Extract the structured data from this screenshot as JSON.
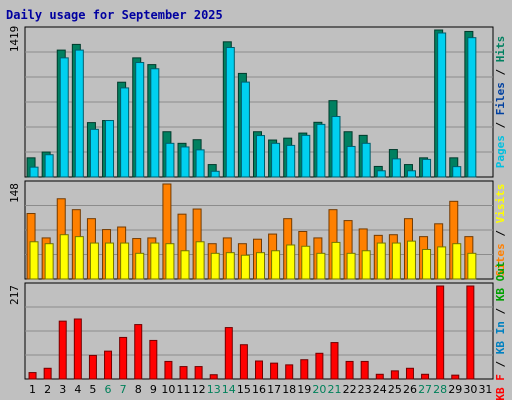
{
  "chart_data": {
    "type": "bar",
    "title": "Daily usage for September 2025",
    "days": [
      "1",
      "2",
      "3",
      "4",
      "5",
      "6",
      "7",
      "8",
      "9",
      "10",
      "11",
      "12",
      "13",
      "14",
      "15",
      "16",
      "17",
      "18",
      "19",
      "20",
      "21",
      "22",
      "23",
      "24",
      "25",
      "26",
      "27",
      "28",
      "29",
      "30",
      "31"
    ],
    "weekend_days": [
      "6",
      "7",
      "13",
      "14",
      "20",
      "21",
      "27",
      "28"
    ],
    "panels": [
      {
        "name": "hits-files-pages",
        "ymax": 1419,
        "ymax_label": "1419",
        "side_label_parts": [
          {
            "text": "Pages",
            "color": "#00c0e0"
          },
          {
            "text": " / ",
            "color": "#000000"
          },
          {
            "text": "Files",
            "color": "#0040a0"
          },
          {
            "text": " / ",
            "color": "#000000"
          },
          {
            "text": "Hits",
            "color": "#008060"
          }
        ],
        "series": [
          {
            "name": "Hits",
            "color": "#008060",
            "values": [
              185,
              241,
              1225,
              1280,
              525,
              545,
              915,
              1150,
              1085,
              437,
              325,
              360,
              120,
              1305,
              1000,
              437,
              357,
              375,
              424,
              528,
              737,
              437,
              402,
              102,
              265,
              120,
              185,
              1419,
              185,
              1405,
              0
            ]
          },
          {
            "name": "Files",
            "color": "#00d0f0",
            "values": [
              95,
              215,
              1150,
              1225,
              460,
              545,
              860,
              1105,
              1045,
              325,
              290,
              262,
              55,
              1250,
              916,
              400,
              325,
              305,
              402,
              508,
              584,
              295,
              325,
              60,
              175,
              60,
              170,
              1390,
              100,
              1345,
              0
            ]
          }
        ]
      },
      {
        "name": "visits-sites",
        "ymax": 148,
        "ymax_label": "148",
        "side_label_parts": [
          {
            "text": "Sites",
            "color": "#ff8000"
          },
          {
            "text": " / ",
            "color": "#000000"
          },
          {
            "text": "Visits",
            "color": "#ffff00"
          }
        ],
        "series": [
          {
            "name": "Sites",
            "color": "#ff8000",
            "values": [
              102,
              64,
              125,
              108,
              94,
              77,
              81,
              63,
              64,
              148,
              101,
              109,
              55,
              64,
              55,
              62,
              70,
              94,
              74,
              64,
              108,
              91,
              78,
              68,
              69,
              94,
              66,
              86,
              121,
              66,
              0
            ]
          },
          {
            "name": "Visits",
            "color": "#ffff00",
            "values": [
              58,
              55,
              69,
              66,
              56,
              56,
              56,
              40,
              56,
              55,
              44,
              58,
              40,
              41,
              37,
              41,
              44,
              53,
              51,
              40,
              57,
              40,
              44,
              56,
              56,
              59,
              46,
              50,
              55,
              40,
              0
            ]
          }
        ]
      },
      {
        "name": "kb",
        "ymax": 217,
        "ymax_label": "217",
        "side_label_parts": [
          {
            "text": "KB F",
            "color": "#ff0000"
          },
          {
            "text": " / ",
            "color": "#000000"
          },
          {
            "text": "KB In",
            "color": "#0080c0"
          },
          {
            "text": " / ",
            "color": "#000000"
          },
          {
            "text": "KB Out",
            "color": "#00a000"
          }
        ],
        "series": [
          {
            "name": "KB F",
            "color": "#ff0000",
            "values": [
              15,
              25,
              135,
              140,
              55,
              65,
              97,
              127,
              90,
              41,
              29,
              29,
              10,
              120,
              80,
              42,
              37,
              33,
              45,
              60,
              85,
              41,
              41,
              11,
              19,
              25,
              11,
              217,
              9,
              217,
              0
            ]
          }
        ]
      }
    ]
  }
}
